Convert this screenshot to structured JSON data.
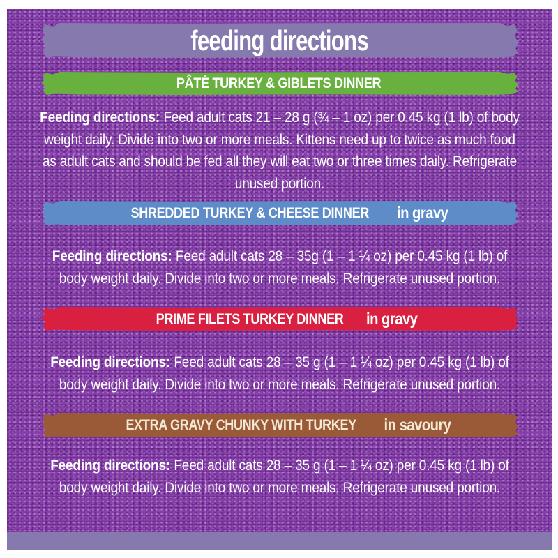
{
  "page": {
    "title": "feeding directions",
    "background_color": "#8a41ad",
    "title_banner_color": "#8579ae",
    "footer_strip_color": "#8579ae",
    "body_text_color": "#ffffff"
  },
  "sections": [
    {
      "banner": {
        "label": "PÂTÉ TURKEY & GIBLETS DINNER",
        "suffix": "",
        "color": "#69b13e",
        "text_color": "#ffffff"
      },
      "directions": {
        "lead": "Feeding directions:",
        "text": "Feed adult cats 21 – 28 g (¾ – 1 oz) per 0.45 kg (1 lb) of body weight daily. Divide into two or more meals. Kittens need up to twice as much food as adult cats and should be fed all they will eat two or three times daily. Refrigerate unused portion."
      }
    },
    {
      "banner": {
        "label": "SHREDDED TURKEY & CHEESE DINNER",
        "suffix": "in gravy",
        "color": "#5d8cc8",
        "text_color": "#ffffff"
      },
      "directions": {
        "lead": "Feeding directions:",
        "text": "Feed adult cats 28 – 35g (1 – 1 ¼ oz) per 0.45 kg (1 lb) of body weight daily. Divide into two or more meals. Refrigerate unused portion."
      }
    },
    {
      "banner": {
        "label": "PRIME FILETS TURKEY DINNER",
        "suffix": "in gravy",
        "color": "#d92040",
        "text_color": "#ffffff"
      },
      "directions": {
        "lead": "Feeding directions:",
        "text": "Feed adult cats 28 – 35 g (1 – 1 ¼ oz) per 0.45 kg (1 lb) of body weight daily. Divide into two or more meals. Refrigerate unused portion."
      }
    },
    {
      "banner": {
        "label": "EXTRA GRAVY CHUNKY WITH TURKEY",
        "suffix": "in savoury",
        "color": "#9b5a37",
        "text_color": "#f2ead6"
      },
      "directions": {
        "lead": "Feeding directions:",
        "text": "Feed adult cats 28 – 35 g (1 – 1 ¼ oz) per 0.45 kg (1 lb) of body weight daily. Divide into two or more meals. Refrigerate unused portion."
      }
    }
  ]
}
